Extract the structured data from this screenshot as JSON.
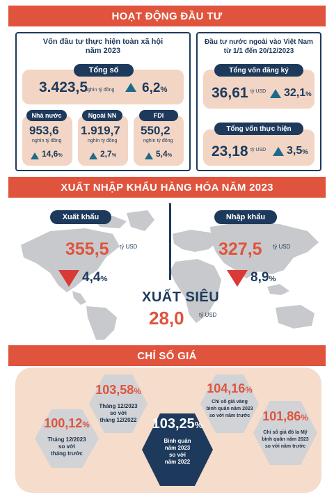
{
  "investment": {
    "banner": "HOẠT ĐỘNG ĐẦU TƯ",
    "social": {
      "title_line1": "Vốn đầu tư thực hiện toàn xã hội",
      "title_line2": "năm 2023",
      "total_label": "Tổng số",
      "total_value": "3.423,5",
      "total_unit": "nghìn tỷ đồng",
      "total_pct": "6,2",
      "total_pct_sign": "%",
      "items": [
        {
          "label": "Nhà nước",
          "value": "953,6",
          "unit": "nghìn tỷ đồng",
          "pct": "14,6",
          "pct_sign": "%"
        },
        {
          "label": "Ngoài NN",
          "value": "1.919,7",
          "unit": "nghìn tỷ đồng",
          "pct": "2,7",
          "pct_sign": "%"
        },
        {
          "label": "FDI",
          "value": "550,2",
          "unit": "nghìn tỷ đồng",
          "pct": "5,4",
          "pct_sign": "%"
        }
      ]
    },
    "fdi": {
      "title_line1": "Đầu tư nước ngoài vào Việt Nam",
      "title_line2": "từ 1/1 đến 20/12/2023",
      "registered_label": "Tổng vốn đăng ký",
      "registered_value": "36,61",
      "registered_unit": "tỷ USD",
      "registered_pct": "32,1",
      "registered_pct_sign": "%",
      "implemented_label": "Tổng vốn thực hiện",
      "implemented_value": "23,18",
      "implemented_unit": "tỷ USD",
      "implemented_pct": "3,5",
      "implemented_pct_sign": "%"
    }
  },
  "trade": {
    "banner": "XUẤT NHẬP KHẨU HÀNG HÓA  NĂM 2023",
    "export_label": "Xuất khẩu",
    "export_value": "355,5",
    "export_unit": "tỷ USD",
    "export_pct": "4,4",
    "export_pct_sign": "%",
    "import_label": "Nhập khẩu",
    "import_value": "327,5",
    "import_unit": "tỷ USD",
    "import_pct": "8,9",
    "import_pct_sign": "%",
    "surplus_label": "XUẤT SIÊU",
    "surplus_value": "28,0",
    "surplus_unit": "tỷ USD"
  },
  "prices": {
    "banner": "CHỈ SỐ GIÁ",
    "hexes": [
      {
        "value": "103,58",
        "sign": "%",
        "l1": "Tháng 12/2023",
        "l2": "so với",
        "l3": "tháng 12/2022",
        "color": "#d1d3d6"
      },
      {
        "value": "104,16",
        "sign": "%",
        "l1": "Chỉ số giá vàng",
        "l2": "bình quân năm 2023",
        "l3": "so với năm trước",
        "color": "#d1d3d6"
      },
      {
        "value": "100,12",
        "sign": "%",
        "l1": "Tháng 12/2023",
        "l2": "so với",
        "l3": "tháng trước",
        "color": "#d1d3d6"
      },
      {
        "value": "103,25",
        "sign": "%",
        "l1": "Bình quân",
        "l2": "năm 2023",
        "l3": "so với",
        "l4": "năm 2022",
        "color": "#1d3a5c"
      },
      {
        "value": "101,86",
        "sign": "%",
        "l1": "Chỉ số giá đô la Mỹ",
        "l2": "bình quân năm 2023",
        "l3": "so với năm trước",
        "color": "#d1d3d6"
      }
    ]
  }
}
